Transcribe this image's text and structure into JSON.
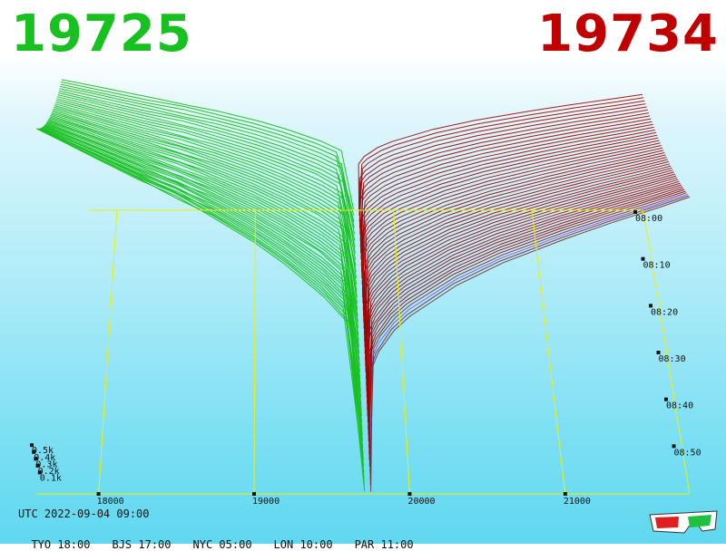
{
  "prices": {
    "bid": "19725",
    "ask": "19734",
    "bid_color": "#18c020",
    "ask_color": "#c00000"
  },
  "info": {
    "utc": "UTC 2022-09-04 09:00",
    "timezones": [
      {
        "label": "TYO 18:00"
      },
      {
        "label": "BJS 17:00"
      },
      {
        "label": "NYC 05:00"
      },
      {
        "label": "LON 10:00"
      },
      {
        "label": "PAR 11:00"
      }
    ]
  },
  "icon": "3d-glasses-icon",
  "chart_data": {
    "type": "area",
    "title": "",
    "x_ticks": [
      {
        "value": 18000,
        "label": "18000"
      },
      {
        "value": 19000,
        "label": "19000"
      },
      {
        "value": 20000,
        "label": "20000"
      },
      {
        "value": 21000,
        "label": "21000"
      }
    ],
    "x_range": [
      17600,
      21800
    ],
    "y_ticks": [
      {
        "value": 100,
        "label": "0.1k"
      },
      {
        "value": 200,
        "label": "0.2k"
      },
      {
        "value": 300,
        "label": "0.3k"
      },
      {
        "value": 400,
        "label": "0.4k"
      },
      {
        "value": 500,
        "label": "0.5k"
      }
    ],
    "y_range": [
      0,
      1000
    ],
    "time_ticks": [
      {
        "label": "08:00"
      },
      {
        "label": "08:10"
      },
      {
        "label": "08:20"
      },
      {
        "label": "08:30"
      },
      {
        "label": "08:40"
      },
      {
        "label": "08:50"
      }
    ],
    "mid_price": 19730,
    "series": [
      {
        "side": "bid",
        "color": "#18c020",
        "x": [
          17600,
          18000,
          18500,
          19000,
          19400,
          19700
        ],
        "depth_start": 960,
        "depth_end": 0
      },
      {
        "side": "ask",
        "color": "#a00000",
        "x": [
          19730,
          20000,
          20500,
          21000,
          21500,
          21800
        ],
        "depth_start": 0,
        "depth_end": 780
      }
    ]
  }
}
